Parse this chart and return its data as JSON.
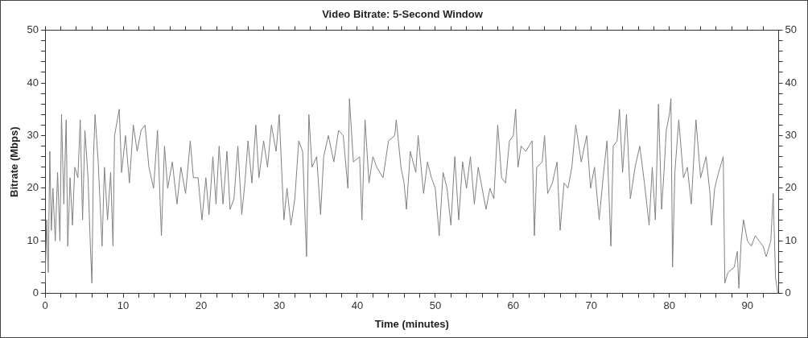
{
  "chart_data": {
    "type": "line",
    "title": "Video Bitrate: 5-Second Window",
    "xlabel": "Time (minutes)",
    "ylabel": "Bitrate (Mbps)",
    "xlim": [
      0,
      94
    ],
    "xticks": [
      0,
      {
        "value": 2,
        "label": null
      },
      {
        "value": 4,
        "label": null
      },
      {
        "value": 6,
        "label": null
      },
      {
        "value": 8,
        "label": null
      },
      10,
      {
        "value": 12,
        "label": null
      },
      {
        "value": 14,
        "label": null
      },
      {
        "value": 16,
        "label": null
      },
      {
        "value": 18,
        "label": null
      },
      20,
      {
        "value": 22,
        "label": null
      },
      {
        "value": 24,
        "label": null
      },
      {
        "value": 26,
        "label": null
      },
      {
        "value": 28,
        "label": null
      },
      30,
      {
        "value": 32,
        "label": null
      },
      {
        "value": 34,
        "label": null
      },
      {
        "value": 36,
        "label": null
      },
      {
        "value": 38,
        "label": null
      },
      40,
      {
        "value": 42,
        "label": null
      },
      {
        "value": 44,
        "label": null
      },
      {
        "value": 46,
        "label": null
      },
      {
        "value": 48,
        "label": null
      },
      50,
      {
        "value": 52,
        "label": null
      },
      {
        "value": 54,
        "label": null
      },
      {
        "value": 56,
        "label": null
      },
      {
        "value": 58,
        "label": null
      },
      60,
      {
        "value": 62,
        "label": null
      },
      {
        "value": 64,
        "label": null
      },
      {
        "value": 66,
        "label": null
      },
      {
        "value": 68,
        "label": null
      },
      70,
      {
        "value": 72,
        "label": null
      },
      {
        "value": 74,
        "label": null
      },
      {
        "value": 76,
        "label": null
      },
      {
        "value": 78,
        "label": null
      },
      80,
      {
        "value": 82,
        "label": null
      },
      {
        "value": 84,
        "label": null
      },
      {
        "value": 86,
        "label": null
      },
      {
        "value": 88,
        "label": null
      },
      90,
      {
        "value": 92,
        "label": null
      }
    ],
    "ylim": [
      0,
      50
    ],
    "yticks": [
      0,
      {
        "value": 2,
        "label": null
      },
      {
        "value": 4,
        "label": null
      },
      {
        "value": 6,
        "label": null
      },
      {
        "value": 8,
        "label": null
      },
      10,
      {
        "value": 12,
        "label": null
      },
      {
        "value": 14,
        "label": null
      },
      {
        "value": 16,
        "label": null
      },
      {
        "value": 18,
        "label": null
      },
      20,
      {
        "value": 22,
        "label": null
      },
      {
        "value": 24,
        "label": null
      },
      {
        "value": 26,
        "label": null
      },
      {
        "value": 28,
        "label": null
      },
      30,
      {
        "value": 32,
        "label": null
      },
      {
        "value": 34,
        "label": null
      },
      {
        "value": 36,
        "label": null
      },
      {
        "value": 38,
        "label": null
      },
      40,
      {
        "value": 42,
        "label": null
      },
      {
        "value": 44,
        "label": null
      },
      {
        "value": 46,
        "label": null
      },
      {
        "value": 48,
        "label": null
      },
      50
    ],
    "y2lim": [
      0,
      50
    ],
    "y2ticks": [
      0,
      {
        "value": 2,
        "label": null
      },
      {
        "value": 4,
        "label": null
      },
      {
        "value": 6,
        "label": null
      },
      {
        "value": 8,
        "label": null
      },
      10,
      {
        "value": 12,
        "label": null
      },
      {
        "value": 14,
        "label": null
      },
      {
        "value": 16,
        "label": null
      },
      {
        "value": 18,
        "label": null
      },
      20,
      {
        "value": 22,
        "label": null
      },
      {
        "value": 24,
        "label": null
      },
      {
        "value": 26,
        "label": null
      },
      {
        "value": 28,
        "label": null
      },
      30,
      {
        "value": 32,
        "label": null
      },
      {
        "value": 34,
        "label": null
      },
      {
        "value": 36,
        "label": null
      },
      {
        "value": 38,
        "label": null
      },
      40,
      {
        "value": 42,
        "label": null
      },
      {
        "value": 44,
        "label": null
      },
      {
        "value": 46,
        "label": null
      },
      {
        "value": 48,
        "label": null
      },
      50
    ],
    "grid": false,
    "legend": false,
    "marker": "none",
    "line_style": "solid",
    "series": [
      {
        "color": "#808080",
        "x": [
          0,
          0.2,
          0.4,
          0.6,
          0.8,
          1.0,
          1.3,
          1.6,
          1.9,
          2.1,
          2.4,
          2.7,
          2.9,
          3.2,
          3.5,
          3.8,
          4.2,
          4.5,
          4.8,
          5.1,
          5.5,
          5.8,
          6.0,
          6.2,
          6.4,
          6.8,
          7.3,
          7.6,
          8.0,
          8.4,
          8.7,
          8.9,
          9.5,
          9.8,
          10.3,
          10.8,
          11.3,
          11.8,
          12.3,
          12.8,
          13.3,
          13.9,
          14.4,
          14.9,
          15.3,
          15.7,
          16.3,
          16.9,
          17.4,
          18.0,
          18.6,
          19.0,
          19.6,
          20.1,
          20.6,
          21.0,
          21.5,
          21.9,
          22.3,
          22.8,
          23.3,
          23.7,
          24.2,
          24.7,
          25.2,
          25.6,
          26.0,
          26.5,
          27.0,
          27.4,
          28.0,
          28.5,
          29.0,
          29.6,
          30.0,
          30.6,
          31.0,
          31.5,
          32.0,
          32.5,
          33.0,
          33.5,
          33.8,
          34.2,
          34.8,
          35.3,
          35.7,
          36.3,
          37.0,
          37.6,
          38.2,
          38.8,
          39.0,
          39.5,
          40.3,
          40.6,
          41.0,
          41.5,
          42.0,
          42.5,
          43.3,
          44.0,
          44.8,
          45.0,
          45.6,
          46.0,
          46.3,
          46.8,
          47.5,
          47.8,
          48.5,
          49.0,
          49.5,
          50.0,
          50.5,
          51.0,
          51.5,
          52.0,
          52.5,
          53.0,
          53.5,
          54.0,
          54.5,
          55.0,
          55.5,
          56.0,
          56.5,
          57.0,
          57.5,
          58.0,
          58.5,
          59.0,
          59.5,
          60.0,
          60.3,
          60.6,
          61.0,
          61.6,
          62.4,
          62.7,
          63.0,
          63.7,
          64.0,
          64.4,
          65.0,
          65.6,
          66.0,
          66.5,
          67.0,
          67.5,
          68.0,
          68.7,
          69.4,
          69.9,
          70.4,
          71.0,
          71.5,
          72.0,
          72.5,
          72.8,
          73.3,
          73.6,
          74.0,
          74.5,
          75.0,
          75.6,
          76.2,
          76.8,
          77.4,
          77.8,
          78.2,
          78.6,
          79.0,
          79.3,
          79.6,
          80.0,
          80.2,
          80.4,
          80.7,
          81.2,
          81.8,
          82.3,
          82.8,
          83.4,
          84.0,
          84.7,
          85.2,
          85.4,
          85.8,
          86.3,
          86.9,
          87.1,
          87.5,
          88.3,
          88.7,
          88.9,
          89.2,
          89.5,
          90.0,
          90.5,
          91.0,
          91.5,
          92.0,
          92.4,
          93.0,
          93.3,
          93.6,
          93.9
        ],
        "values": [
          2,
          14,
          4,
          27,
          12,
          20,
          10,
          23,
          10,
          34,
          17,
          33,
          9,
          22,
          13,
          24,
          22,
          33,
          14,
          31,
          22,
          9,
          2,
          26,
          34,
          25,
          9,
          24,
          14,
          23,
          9,
          30,
          35,
          23,
          30,
          21,
          32,
          27,
          31,
          32,
          24,
          20,
          31,
          11,
          28,
          20,
          25,
          17,
          24,
          19,
          29,
          22,
          22,
          14,
          22,
          15,
          26,
          17,
          28,
          17,
          27,
          16,
          18,
          28,
          15,
          21,
          29,
          21,
          32,
          22,
          29,
          24,
          32,
          27,
          34,
          14,
          20,
          13,
          18,
          29,
          27,
          7,
          34,
          24,
          26,
          15,
          26,
          30,
          25,
          31,
          30,
          20,
          37,
          25,
          26,
          14,
          33,
          21,
          26,
          24,
          22,
          29,
          30,
          33,
          24,
          21,
          16,
          27,
          23,
          30,
          19,
          25,
          22,
          20,
          11,
          23,
          20,
          13,
          26,
          14,
          25,
          20,
          26,
          17,
          24,
          20,
          16,
          20,
          18,
          32,
          22,
          21,
          29,
          30,
          35,
          24,
          28,
          27,
          29,
          11,
          24,
          25,
          30,
          19,
          21,
          25,
          12,
          21,
          20,
          24,
          32,
          25,
          30,
          20,
          24,
          14,
          22,
          29,
          9,
          28,
          29,
          35,
          23,
          34,
          18,
          24,
          28,
          21,
          13,
          24,
          14,
          36,
          16,
          23,
          31,
          34,
          37,
          5,
          23,
          33,
          22,
          24,
          17,
          33,
          22,
          26,
          19,
          13,
          20,
          23,
          26,
          2,
          4,
          5,
          8,
          1,
          10,
          14,
          10,
          9,
          11,
          10,
          9,
          7,
          10,
          19,
          3,
          0
        ]
      }
    ]
  }
}
